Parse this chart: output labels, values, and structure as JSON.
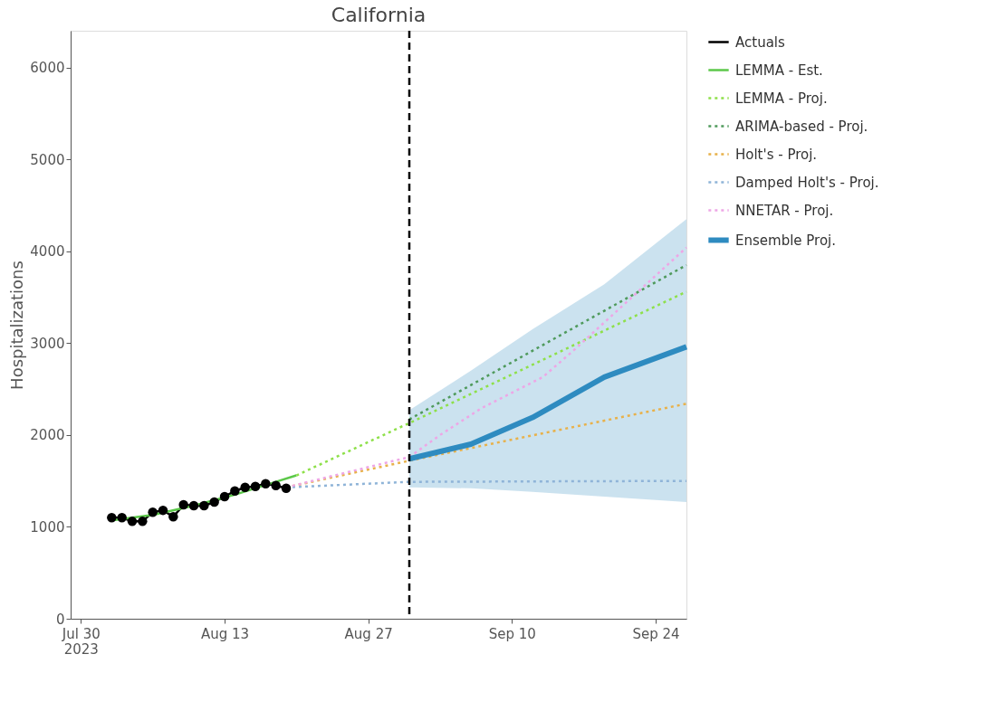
{
  "chart_data": {
    "type": "line",
    "title": "California",
    "ylabel": "Hospitalizations",
    "xlim": [
      "2023-07-29",
      "2023-09-27"
    ],
    "xticks": [
      {
        "value": "2023-07-30",
        "label": "Jul 30\n2023"
      },
      {
        "value": "2023-08-13",
        "label": "Aug 13"
      },
      {
        "value": "2023-08-27",
        "label": "Aug 27"
      },
      {
        "value": "2023-09-10",
        "label": "Sep 10"
      },
      {
        "value": "2023-09-24",
        "label": "Sep 24"
      }
    ],
    "ylim": [
      0,
      6400
    ],
    "yticks": [
      0,
      1000,
      2000,
      3000,
      4000,
      5000,
      6000
    ],
    "grid": false,
    "legend": "top right",
    "ref_lines": [
      {
        "axis": "x",
        "value": "2023-08-31",
        "color": "#000000",
        "line_style": "dashed"
      }
    ],
    "series": [
      {
        "name": "Actuals",
        "color": "#000000",
        "marker": "circle",
        "line_style": "solid",
        "x": [
          "2023-08-02",
          "2023-08-03",
          "2023-08-04",
          "2023-08-05",
          "2023-08-06",
          "2023-08-07",
          "2023-08-08",
          "2023-08-09",
          "2023-08-10",
          "2023-08-11",
          "2023-08-12",
          "2023-08-13",
          "2023-08-14",
          "2023-08-15",
          "2023-08-16",
          "2023-08-17",
          "2023-08-18",
          "2023-08-19"
        ],
        "values": [
          1100,
          1100,
          1060,
          1060,
          1160,
          1180,
          1110,
          1240,
          1230,
          1230,
          1270,
          1330,
          1390,
          1430,
          1440,
          1470,
          1450,
          1420
        ]
      },
      {
        "name": "LEMMA - Est.",
        "color": "#5cc84a",
        "line_style": "solid",
        "x": [
          "2023-08-02",
          "2023-08-06",
          "2023-08-10",
          "2023-08-14",
          "2023-08-18",
          "2023-08-20"
        ],
        "values": [
          1070,
          1130,
          1230,
          1350,
          1490,
          1560
        ]
      },
      {
        "name": "LEMMA - Proj.",
        "color": "#8ee04a",
        "line_style": "dotted",
        "x": [
          "2023-08-20",
          "2023-08-31",
          "2023-09-27"
        ],
        "values": [
          1560,
          2130,
          3560
        ]
      },
      {
        "name": "ARIMA-based - Proj.",
        "color": "#4f9a5c",
        "line_style": "dotted",
        "x": [
          "2023-08-31",
          "2023-09-27"
        ],
        "values": [
          2170,
          3850
        ]
      },
      {
        "name": "Holt's - Proj.",
        "color": "#e8b14a",
        "line_style": "dotted",
        "x": [
          "2023-08-19",
          "2023-08-31",
          "2023-09-27"
        ],
        "values": [
          1430,
          1720,
          2340
        ]
      },
      {
        "name": "Damped Holt's - Proj.",
        "color": "#8fb4d8",
        "line_style": "dotted",
        "x": [
          "2023-08-19",
          "2023-08-31",
          "2023-09-27"
        ],
        "values": [
          1430,
          1490,
          1500
        ]
      },
      {
        "name": "NNETAR - Proj.",
        "color": "#eea6e6",
        "line_style": "dotted",
        "x": [
          "2023-08-19",
          "2023-08-31",
          "2023-09-03",
          "2023-09-07",
          "2023-09-13",
          "2023-09-16",
          "2023-09-27"
        ],
        "values": [
          1430,
          1760,
          2000,
          2290,
          2630,
          2920,
          4040
        ]
      },
      {
        "name": "Ensemble Proj.",
        "color": "#2e8bc0",
        "line_style": "solid",
        "x": [
          "2023-08-31",
          "2023-09-06",
          "2023-09-12",
          "2023-09-19",
          "2023-09-27"
        ],
        "values": [
          1740,
          1900,
          2190,
          2630,
          2960
        ],
        "lower": [
          1430,
          1420,
          1380,
          1330,
          1270
        ],
        "upper": [
          2270,
          2700,
          3150,
          3640,
          4350
        ]
      }
    ]
  }
}
